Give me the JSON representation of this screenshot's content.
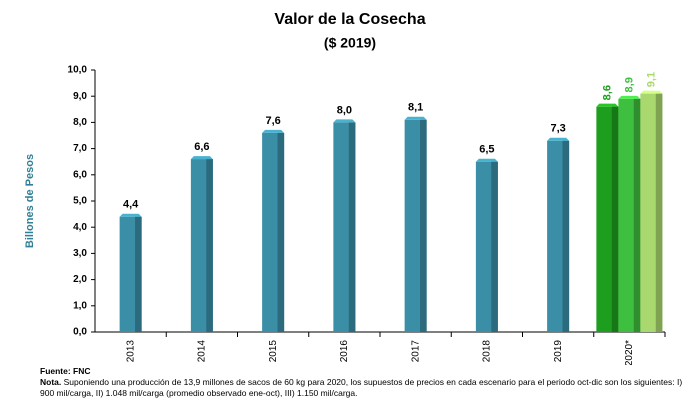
{
  "chart_data": {
    "type": "bar",
    "title": "Valor de la Cosecha",
    "subtitle": "($ 2019)",
    "y_label": "Billones de Pesos",
    "categories": [
      "2013",
      "2014",
      "2015",
      "2016",
      "2017",
      "2018",
      "2019",
      "2020*"
    ],
    "series": [
      {
        "color": "#3a8ea6",
        "values": [
          4.4,
          6.6,
          7.6,
          8.0,
          8.1,
          6.5,
          7.3,
          null
        ],
        "value_labels": [
          "4,4",
          "6,6",
          "7,6",
          "8,0",
          "8,1",
          "6,5",
          "7,3",
          null
        ]
      },
      {
        "color": "#1e9e1e",
        "values": [
          null,
          null,
          null,
          null,
          null,
          null,
          null,
          8.6
        ],
        "value_labels": [
          null,
          null,
          null,
          null,
          null,
          null,
          null,
          "8,6"
        ]
      },
      {
        "color": "#3fbf3f",
        "values": [
          null,
          null,
          null,
          null,
          null,
          null,
          null,
          8.9
        ],
        "value_labels": [
          null,
          null,
          null,
          null,
          null,
          null,
          null,
          "8,9"
        ]
      },
      {
        "color": "#a9d86e",
        "values": [
          null,
          null,
          null,
          null,
          null,
          null,
          null,
          9.1
        ],
        "value_labels": [
          null,
          null,
          null,
          null,
          null,
          null,
          null,
          "9,1"
        ]
      }
    ],
    "ylim": [
      0,
      10
    ],
    "yticks": [
      {
        "value": 0,
        "label": "0,0"
      },
      {
        "value": 1,
        "label": "1,0"
      },
      {
        "value": 2,
        "label": "2,0"
      },
      {
        "value": 3,
        "label": "3,0"
      },
      {
        "value": 4,
        "label": "4,0"
      },
      {
        "value": 5,
        "label": "5,0"
      },
      {
        "value": 6,
        "label": "6,0"
      },
      {
        "value": 7,
        "label": "7,0"
      },
      {
        "value": 8,
        "label": "8,0"
      },
      {
        "value": 9,
        "label": "9,0"
      },
      {
        "value": 10,
        "label": "10,0"
      }
    ],
    "source": "Fuente: FNC",
    "note_label": "Nota.",
    "note": "Suponiendo una producción de 13,9 millones de sacos de 60 kg para 2020, los supuestos de precios en cada escenario para el periodo oct-dic son los siguientes: I) 900 mil/carga, II) 1.048 mil/carga (promedio observado ene-oct), III) 1.150 mil/carga."
  }
}
